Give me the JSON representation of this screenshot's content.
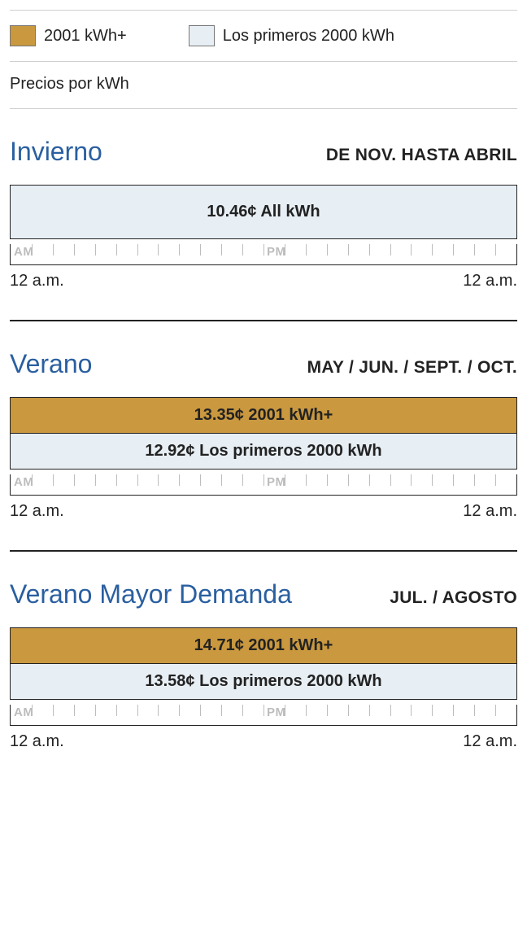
{
  "colors": {
    "tier_high": "#c9983f",
    "tier_low": "#e7eef4",
    "accent_blue": "#2a5fa0",
    "rule_gray": "#cfcfcf",
    "rule_dark": "#222222",
    "tick_gray": "#bdbdbd",
    "text": "#222222",
    "background": "#ffffff"
  },
  "legend": {
    "high": {
      "label": "2001 kWh+",
      "swatch": "#c9983f"
    },
    "low": {
      "label": "Los primeros 2000 kWh",
      "swatch": "#e7eef4"
    }
  },
  "subtitle": "Precios por kWh",
  "ruler": {
    "total_hours": 24,
    "am_label": "AM",
    "pm_label": "PM",
    "start_label": "12 a.m.",
    "end_label": "12 a.m."
  },
  "seasons": [
    {
      "key": "invierno",
      "title": "Invierno",
      "period": "DE NOV. HASTA ABRIL",
      "bars": [
        {
          "text": "10.46¢ All kWh",
          "bg": "#e7eef4",
          "tall": true
        }
      ]
    },
    {
      "key": "verano",
      "title": "Verano",
      "period": "MAY / JUN. / SEPT. / OCT.",
      "bars": [
        {
          "text": "13.35¢ 2001 kWh+",
          "bg": "#c9983f",
          "tall": false
        },
        {
          "text": "12.92¢ Los primeros 2000 kWh",
          "bg": "#e7eef4",
          "tall": false
        }
      ]
    },
    {
      "key": "verano-mayor",
      "title": "Verano Mayor Demanda",
      "period": "JUL. / AGOSTO",
      "bars": [
        {
          "text": "14.71¢ 2001 kWh+",
          "bg": "#c9983f",
          "tall": false
        },
        {
          "text": "13.58¢ Los primeros 2000 kWh",
          "bg": "#e7eef4",
          "tall": false
        }
      ]
    }
  ]
}
